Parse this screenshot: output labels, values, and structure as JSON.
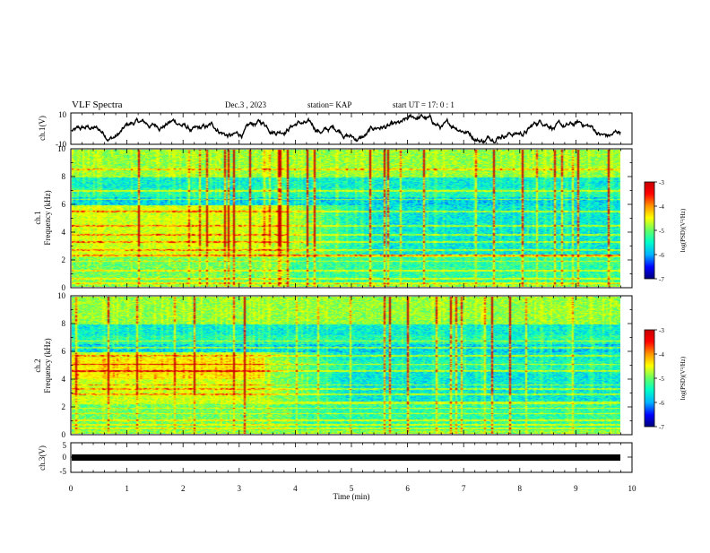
{
  "header": {
    "title": "VLF Spectra",
    "date": "Dec.3 , 2023",
    "station": "station= KAP",
    "start": "start UT = 17: 0 : 1"
  },
  "colorbar_labels": {
    "ch1": "log(PSD)(V²/Hz)",
    "ch2": "log(PSD)(V²/Hz)"
  },
  "chart_data": [
    {
      "type": "line",
      "panel": "ch.1(V)",
      "ylabel": "ch.1(V)",
      "ylim": [
        -10,
        10
      ],
      "yticks": [
        "10",
        "-10"
      ],
      "x_range_min": [
        0,
        10
      ],
      "description": "waveform trace"
    },
    {
      "type": "heatmap",
      "panel": "ch.1",
      "ylabel_lines": [
        "ch.1",
        "Frequency (kHz)"
      ],
      "xlim": [
        0,
        10
      ],
      "ylim": [
        0,
        10
      ],
      "yticks": [
        "0",
        "2",
        "4",
        "6",
        "8",
        "10"
      ],
      "colorbar": {
        "min": -7,
        "max": -3,
        "ticks": [
          "-3",
          "-4",
          "-5",
          "-6",
          "-7"
        ]
      },
      "colormap": [
        "#00007a",
        "#0000ff",
        "#00b4ff",
        "#00ffc8",
        "#64ff64",
        "#d8ff00",
        "#ffff00",
        "#ff9600",
        "#ff0000",
        "#c80000"
      ],
      "data_end_min": 9.8
    },
    {
      "type": "heatmap",
      "panel": "ch.2",
      "ylabel_lines": [
        "ch.2",
        "Frequency (kHz)"
      ],
      "xlim": [
        0,
        10
      ],
      "ylim": [
        0,
        10
      ],
      "yticks": [
        "0",
        "2",
        "4",
        "6",
        "8",
        "10"
      ],
      "colorbar": {
        "min": -7,
        "max": -3,
        "ticks": [
          "-3",
          "-4",
          "-5",
          "-6",
          "-7"
        ]
      },
      "data_end_min": 9.8
    },
    {
      "type": "line",
      "panel": "ch.3(V)",
      "ylabel": "ch.3(V)",
      "ylim": [
        -5,
        5
      ],
      "yticks": [
        "5",
        "0",
        "-5"
      ],
      "trace_level_v": -0.3
    }
  ],
  "xaxis": {
    "label": "Time (min)",
    "ticks": [
      "0",
      "1",
      "2",
      "3",
      "4",
      "5",
      "6",
      "7",
      "8",
      "9",
      "10"
    ]
  }
}
